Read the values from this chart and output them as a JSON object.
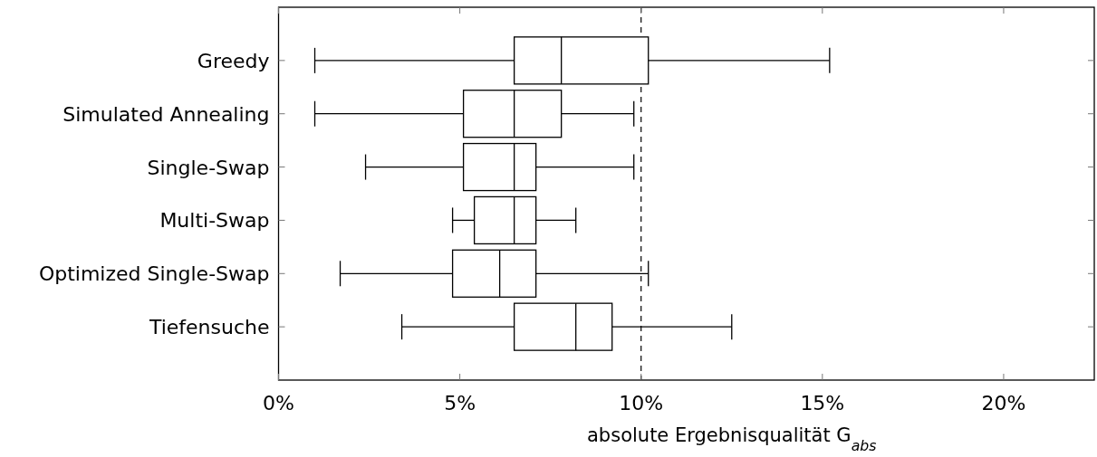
{
  "chart_data": {
    "type": "box",
    "orientation": "horizontal",
    "xlabel": "absolute Ergebnisqualität G$_{abs}$",
    "categories": [
      "Greedy",
      "Simulated Annealing",
      "Single-Swap",
      "Multi-Swap",
      "Optimized Single-Swap",
      "Tiefensuche"
    ],
    "boxes": [
      {
        "low": 1.0,
        "q1": 6.5,
        "median": 7.8,
        "q3": 10.2,
        "high": 15.2
      },
      {
        "low": 1.0,
        "q1": 5.1,
        "median": 6.5,
        "q3": 7.8,
        "high": 9.8
      },
      {
        "low": 2.4,
        "q1": 5.1,
        "median": 6.5,
        "q3": 7.1,
        "high": 9.8
      },
      {
        "low": 4.8,
        "q1": 5.4,
        "median": 6.5,
        "q3": 7.1,
        "high": 8.2
      },
      {
        "low": 1.7,
        "q1": 4.8,
        "median": 6.1,
        "q3": 7.1,
        "high": 10.2
      },
      {
        "low": 3.4,
        "q1": 6.5,
        "median": 8.2,
        "q3": 9.2,
        "high": 12.5
      }
    ],
    "color": "#000000",
    "xlim": [
      0,
      22.5
    ],
    "xticks": [
      {
        "value": 0,
        "label": "0%"
      },
      {
        "value": 5,
        "label": "5%"
      },
      {
        "value": 10,
        "label": "10%"
      },
      {
        "value": 15,
        "label": "15%"
      },
      {
        "value": 20,
        "label": "20%"
      }
    ],
    "ref_lines": [
      {
        "axis": "x",
        "value": 10,
        "line_style": "dashed",
        "color": "#000000"
      }
    ],
    "grid": false
  }
}
